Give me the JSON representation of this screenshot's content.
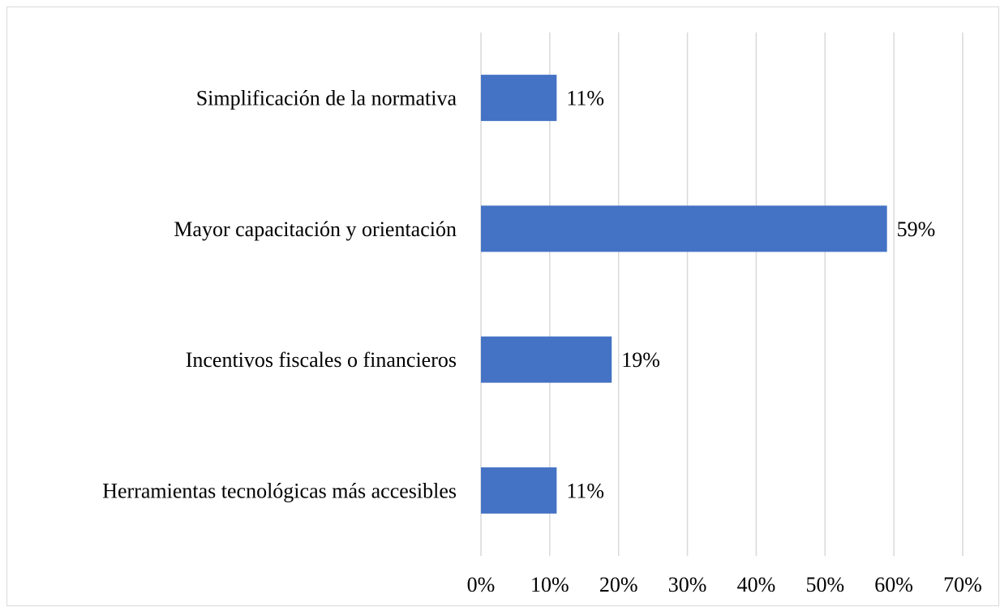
{
  "chart_data": {
    "type": "bar",
    "orientation": "horizontal",
    "categories": [
      "Simplificación de la normativa",
      "Mayor capacitación y orientación",
      "Incentivos fiscales o financieros",
      "Herramientas tecnológicas más accesibles"
    ],
    "values": [
      11,
      59,
      19,
      11
    ],
    "value_labels": [
      "11%",
      "59%",
      "19%",
      "11%"
    ],
    "color": "#4472c4",
    "xlim": [
      0,
      70
    ],
    "xticks": [
      {
        "value": 0,
        "label": "0%"
      },
      {
        "value": 10,
        "label": "10%"
      },
      {
        "value": 20,
        "label": "20%"
      },
      {
        "value": 30,
        "label": "30%"
      },
      {
        "value": 40,
        "label": "40%"
      },
      {
        "value": 50,
        "label": "50%"
      },
      {
        "value": 60,
        "label": "60%"
      },
      {
        "value": 70,
        "label": "70%"
      }
    ],
    "grid": true
  }
}
